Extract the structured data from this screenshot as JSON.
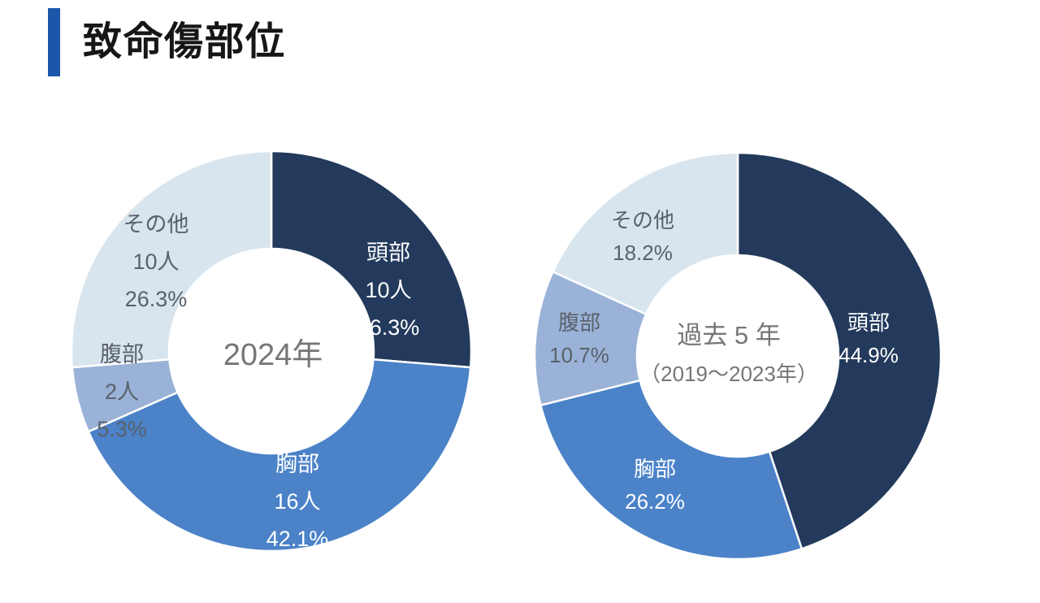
{
  "header": {
    "title": "致命傷部位"
  },
  "colors": {
    "background": "#FFFFFF",
    "accent_bar": "#1C56A8",
    "title_text": "#161616",
    "segment_head": "#233A5C",
    "segment_chest": "#4B82C8",
    "segment_abdomen": "#9AB2D7",
    "segment_other": "#D8E5EE",
    "label_on_dark": "#FFFFFF",
    "label_on_light": "#5A616B",
    "center_text": "#767676"
  },
  "chart_data": [
    {
      "type": "pie",
      "variant": "donut",
      "title": "2024年",
      "start_angle_deg": 0,
      "direction": "clockwise",
      "legend_position": "none",
      "center_label": {
        "lines": [
          "2024年"
        ]
      },
      "segments": [
        {
          "key": "head",
          "label": "頭部",
          "count": 10,
          "count_label": "10人",
          "percent": 26.3,
          "percent_label": "26.3%",
          "label_lines": [
            "頭部",
            "10人",
            "26.3%"
          ],
          "color_key": "segment_head",
          "label_style": "on_dark"
        },
        {
          "key": "chest",
          "label": "胸部",
          "count": 16,
          "count_label": "16人",
          "percent": 42.1,
          "percent_label": "42.1%",
          "label_lines": [
            "胸部",
            "16人",
            "42.1%"
          ],
          "color_key": "segment_chest",
          "label_style": "on_dark"
        },
        {
          "key": "abdomen",
          "label": "腹部",
          "count": 2,
          "count_label": "2人",
          "percent": 5.3,
          "percent_label": "5.3%",
          "label_lines": [
            "腹部",
            "2人",
            "5.3%"
          ],
          "color_key": "segment_abdomen",
          "label_style": "on_light"
        },
        {
          "key": "other",
          "label": "その他",
          "count": 10,
          "count_label": "10人",
          "percent": 26.3,
          "percent_label": "26.3%",
          "label_lines": [
            "その他",
            "10人",
            "26.3%"
          ],
          "color_key": "segment_other",
          "label_style": "on_light"
        }
      ]
    },
    {
      "type": "pie",
      "variant": "donut",
      "title": "過去 5 年（2019〜2023年）",
      "start_angle_deg": 0,
      "direction": "clockwise",
      "legend_position": "none",
      "center_label": {
        "lines": [
          "過去 5 年",
          "（2019〜2023年）"
        ]
      },
      "segments": [
        {
          "key": "head",
          "label": "頭部",
          "percent": 44.9,
          "percent_label": "44.9%",
          "label_lines": [
            "頭部",
            "44.9%"
          ],
          "color_key": "segment_head",
          "label_style": "on_dark"
        },
        {
          "key": "chest",
          "label": "胸部",
          "percent": 26.2,
          "percent_label": "26.2%",
          "label_lines": [
            "胸部",
            "26.2%"
          ],
          "color_key": "segment_chest",
          "label_style": "on_dark"
        },
        {
          "key": "abdomen",
          "label": "腹部",
          "percent": 10.7,
          "percent_label": "10.7%",
          "label_lines": [
            "腹部",
            "10.7%"
          ],
          "color_key": "segment_abdomen",
          "label_style": "on_light"
        },
        {
          "key": "other",
          "label": "その他",
          "percent": 18.2,
          "percent_label": "18.2%",
          "label_lines": [
            "その他",
            "18.2%"
          ],
          "color_key": "segment_other",
          "label_style": "on_light"
        }
      ]
    }
  ]
}
